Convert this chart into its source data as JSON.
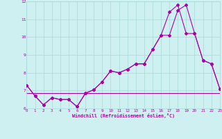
{
  "xlabel": "Windchill (Refroidissement éolien,°C)",
  "background_color": "#cff0f0",
  "grid_color": "#a8d8d8",
  "line_color": "#aa00aa",
  "xlim": [
    0,
    23
  ],
  "ylim": [
    6,
    12
  ],
  "yticks": [
    6,
    7,
    8,
    9,
    10,
    11,
    12
  ],
  "xticks": [
    0,
    1,
    2,
    3,
    4,
    5,
    6,
    7,
    8,
    9,
    10,
    11,
    12,
    13,
    14,
    15,
    16,
    17,
    18,
    19,
    20,
    21,
    22,
    23
  ],
  "series1_x": [
    0,
    1,
    2,
    3,
    4,
    5,
    6,
    7,
    8,
    9,
    10,
    11,
    12,
    13,
    14,
    15,
    16,
    17,
    18,
    19,
    20,
    21,
    22,
    23
  ],
  "series1_y": [
    7.3,
    6.7,
    6.2,
    6.6,
    6.5,
    6.5,
    6.1,
    6.85,
    7.05,
    7.5,
    8.1,
    8.0,
    8.2,
    8.5,
    8.5,
    9.3,
    10.1,
    10.1,
    11.5,
    11.8,
    10.2,
    8.7,
    8.5,
    7.1
  ],
  "series2_x": [
    0,
    1,
    2,
    3,
    4,
    5,
    6,
    7,
    8,
    9,
    10,
    11,
    12,
    13,
    14,
    15,
    16,
    17,
    18,
    19,
    20,
    21,
    22,
    23
  ],
  "series2_y": [
    7.3,
    6.7,
    6.2,
    6.6,
    6.5,
    6.5,
    6.1,
    6.85,
    7.05,
    7.5,
    8.1,
    8.0,
    8.2,
    8.5,
    8.5,
    9.3,
    10.1,
    11.4,
    11.8,
    10.2,
    10.2,
    8.7,
    8.5,
    7.1
  ],
  "series3_x": [
    0,
    1,
    2,
    3,
    4,
    5,
    6,
    7,
    8,
    9,
    10,
    11,
    12,
    13,
    14,
    15,
    16,
    17,
    18,
    19,
    20,
    21,
    22,
    23
  ],
  "series3_y": [
    6.85,
    6.85,
    6.85,
    6.85,
    6.85,
    6.85,
    6.85,
    6.85,
    6.85,
    6.85,
    6.85,
    6.85,
    6.85,
    6.85,
    6.85,
    6.85,
    6.85,
    6.85,
    6.85,
    6.85,
    6.85,
    6.85,
    6.85,
    6.85
  ]
}
